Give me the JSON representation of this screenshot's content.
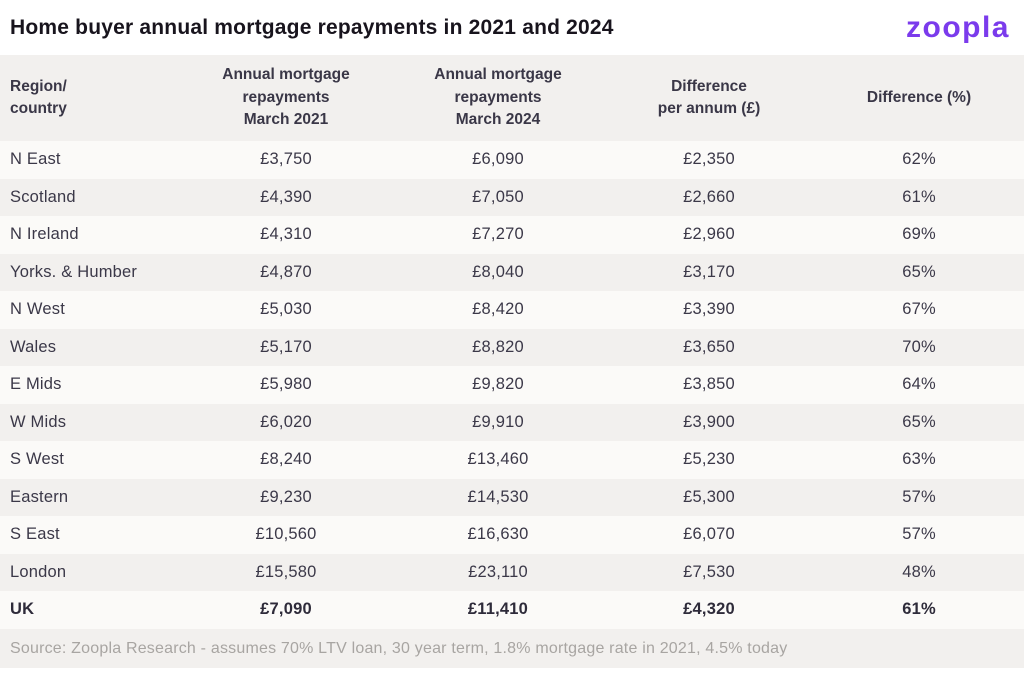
{
  "header": {
    "title": "Home buyer annual mortgage repayments in 2021 and 2024",
    "logo_text": "zoopla"
  },
  "table": {
    "columns": [
      {
        "label": "Region/\ncountry"
      },
      {
        "label": "Annual mortgage\nrepayments\nMarch 2021"
      },
      {
        "label": "Annual mortgage\nrepayments\nMarch 2024"
      },
      {
        "label": "Difference\nper annum (£)"
      },
      {
        "label": "Difference (%)"
      }
    ],
    "rows": [
      {
        "region": "N East",
        "repay_2021": "£3,750",
        "repay_2024": "£6,090",
        "diff_gbp": "£2,350",
        "diff_pct": "62%"
      },
      {
        "region": "Scotland",
        "repay_2021": "£4,390",
        "repay_2024": "£7,050",
        "diff_gbp": "£2,660",
        "diff_pct": "61%"
      },
      {
        "region": "N Ireland",
        "repay_2021": "£4,310",
        "repay_2024": "£7,270",
        "diff_gbp": "£2,960",
        "diff_pct": "69%"
      },
      {
        "region": "Yorks. & Humber",
        "repay_2021": "£4,870",
        "repay_2024": "£8,040",
        "diff_gbp": "£3,170",
        "diff_pct": "65%"
      },
      {
        "region": "N West",
        "repay_2021": "£5,030",
        "repay_2024": "£8,420",
        "diff_gbp": "£3,390",
        "diff_pct": "67%"
      },
      {
        "region": "Wales",
        "repay_2021": "£5,170",
        "repay_2024": "£8,820",
        "diff_gbp": "£3,650",
        "diff_pct": "70%"
      },
      {
        "region": "E Mids",
        "repay_2021": "£5,980",
        "repay_2024": "£9,820",
        "diff_gbp": "£3,850",
        "diff_pct": "64%"
      },
      {
        "region": "W Mids",
        "repay_2021": "£6,020",
        "repay_2024": "£9,910",
        "diff_gbp": "£3,900",
        "diff_pct": "65%"
      },
      {
        "region": "S West",
        "repay_2021": "£8,240",
        "repay_2024": "£13,460",
        "diff_gbp": "£5,230",
        "diff_pct": "63%"
      },
      {
        "region": "Eastern",
        "repay_2021": "£9,230",
        "repay_2024": "£14,530",
        "diff_gbp": "£5,300",
        "diff_pct": "57%"
      },
      {
        "region": "S East",
        "repay_2021": "£10,560",
        "repay_2024": "£16,630",
        "diff_gbp": "£6,070",
        "diff_pct": "57%"
      },
      {
        "region": "London",
        "repay_2021": "£15,580",
        "repay_2024": "£23,110",
        "diff_gbp": "£7,530",
        "diff_pct": "48%"
      },
      {
        "region": "UK",
        "repay_2021": "£7,090",
        "repay_2024": "£11,410",
        "diff_gbp": "£4,320",
        "diff_pct": "61%"
      }
    ]
  },
  "footer": {
    "source": "Source: Zoopla Research - assumes 70% LTV loan, 30 year term, 1.8% mortgage rate in 2021, 4.5% today"
  },
  "colors": {
    "brand_purple": "#7B3BEC",
    "title_text": "#18141D",
    "body_text": "#3B3848",
    "row_shaded": "#F2F0EE",
    "row_plain": "#FBFAF8",
    "source_text": "#A8A5A2"
  },
  "chart_data": {
    "type": "table",
    "title": "Home buyer annual mortgage repayments in 2021 and 2024",
    "columns": [
      "Region/country",
      "Annual mortgage repayments March 2021",
      "Annual mortgage repayments March 2024",
      "Difference per annum (£)",
      "Difference (%)"
    ],
    "rows": [
      {
        "region": "N East",
        "repayments_march_2021_gbp": 3750,
        "repayments_march_2024_gbp": 6090,
        "difference_per_annum_gbp": 2350,
        "difference_pct": 62
      },
      {
        "region": "Scotland",
        "repayments_march_2021_gbp": 4390,
        "repayments_march_2024_gbp": 7050,
        "difference_per_annum_gbp": 2660,
        "difference_pct": 61
      },
      {
        "region": "N Ireland",
        "repayments_march_2021_gbp": 4310,
        "repayments_march_2024_gbp": 7270,
        "difference_per_annum_gbp": 2960,
        "difference_pct": 69
      },
      {
        "region": "Yorks. & Humber",
        "repayments_march_2021_gbp": 4870,
        "repayments_march_2024_gbp": 8040,
        "difference_per_annum_gbp": 3170,
        "difference_pct": 65
      },
      {
        "region": "N West",
        "repayments_march_2021_gbp": 5030,
        "repayments_march_2024_gbp": 8420,
        "difference_per_annum_gbp": 3390,
        "difference_pct": 67
      },
      {
        "region": "Wales",
        "repayments_march_2021_gbp": 5170,
        "repayments_march_2024_gbp": 8820,
        "difference_per_annum_gbp": 3650,
        "difference_pct": 70
      },
      {
        "region": "E Mids",
        "repayments_march_2021_gbp": 5980,
        "repayments_march_2024_gbp": 9820,
        "difference_per_annum_gbp": 3850,
        "difference_pct": 64
      },
      {
        "region": "W Mids",
        "repayments_march_2021_gbp": 6020,
        "repayments_march_2024_gbp": 9910,
        "difference_per_annum_gbp": 3900,
        "difference_pct": 65
      },
      {
        "region": "S West",
        "repayments_march_2021_gbp": 8240,
        "repayments_march_2024_gbp": 13460,
        "difference_per_annum_gbp": 5230,
        "difference_pct": 63
      },
      {
        "region": "Eastern",
        "repayments_march_2021_gbp": 9230,
        "repayments_march_2024_gbp": 14530,
        "difference_per_annum_gbp": 5300,
        "difference_pct": 57
      },
      {
        "region": "S East",
        "repayments_march_2021_gbp": 10560,
        "repayments_march_2024_gbp": 16630,
        "difference_per_annum_gbp": 6070,
        "difference_pct": 57
      },
      {
        "region": "London",
        "repayments_march_2021_gbp": 15580,
        "repayments_march_2024_gbp": 23110,
        "difference_per_annum_gbp": 7530,
        "difference_pct": 48
      },
      {
        "region": "UK",
        "repayments_march_2021_gbp": 7090,
        "repayments_march_2024_gbp": 11410,
        "difference_per_annum_gbp": 4320,
        "difference_pct": 61
      }
    ],
    "source": "Source: Zoopla Research - assumes 70% LTV loan, 30 year term, 1.8% mortgage rate in 2021, 4.5% today"
  }
}
